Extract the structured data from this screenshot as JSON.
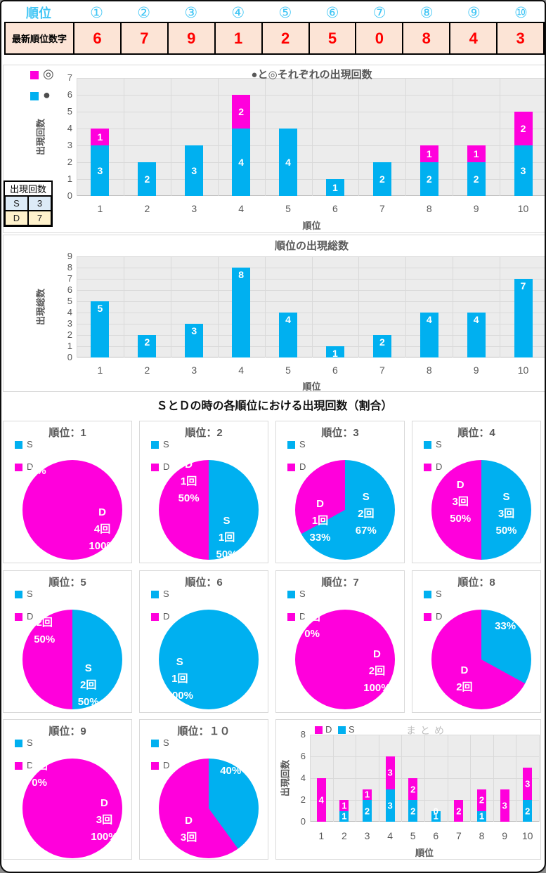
{
  "colors": {
    "cyan": "#00b0f0",
    "magenta": "#ff00dc",
    "plot_bg": "#ececec",
    "grid": "#d9d9d9",
    "axis_text": "#595959",
    "red": "#ff0000",
    "peach": "#fce4d6",
    "light_blue": "#ddebf7",
    "cream": "#fff2cc",
    "muted_title": "#bfbfbf"
  },
  "header_table": {
    "rank_label": "順位",
    "value_label": "最新順位数字",
    "circled": [
      "①",
      "②",
      "③",
      "④",
      "⑤",
      "⑥",
      "⑦",
      "⑧",
      "⑨",
      "⑩"
    ],
    "values": [
      "6",
      "7",
      "9",
      "1",
      "2",
      "5",
      "0",
      "8",
      "4",
      "3"
    ]
  },
  "counts_table": {
    "title": "出現回数",
    "rows": [
      {
        "key": "S",
        "value": "3"
      },
      {
        "key": "D",
        "value": "7"
      }
    ]
  },
  "section_title": "ＳとＤの時の各順位における出現回数（割合）",
  "chart_data": [
    {
      "type": "bar",
      "stacked": true,
      "title": "●と◎それぞれの出現回数",
      "ylabel": "出現回数",
      "xlabel": "順位",
      "categories": [
        "1",
        "2",
        "3",
        "4",
        "5",
        "6",
        "7",
        "8",
        "9",
        "10"
      ],
      "series": [
        {
          "name": "●",
          "color_key": "cyan",
          "values": [
            3,
            2,
            3,
            4,
            4,
            1,
            2,
            2,
            2,
            3
          ]
        },
        {
          "name": "◎",
          "color_key": "magenta",
          "values": [
            1,
            0,
            0,
            2,
            0,
            0,
            0,
            1,
            1,
            2
          ]
        }
      ],
      "ylim": [
        0,
        7
      ],
      "ytick_step": 1,
      "legend_position": "top-left",
      "legend": [
        {
          "symbol": "◎",
          "color_key": "magenta"
        },
        {
          "symbol": "●",
          "color_key": "cyan"
        }
      ]
    },
    {
      "type": "bar",
      "stacked": false,
      "title": "順位の出現総数",
      "ylabel": "出現総数",
      "xlabel": "順位",
      "categories": [
        "1",
        "2",
        "3",
        "4",
        "5",
        "6",
        "7",
        "8",
        "9",
        "10"
      ],
      "values": [
        5,
        2,
        3,
        8,
        4,
        1,
        2,
        4,
        4,
        7
      ],
      "ylim": [
        0,
        9
      ],
      "ytick_step": 1
    },
    {
      "type": "pie-grid",
      "section_title": "ＳとＤの時の各順位における出現回数（割合）",
      "legend": [
        "S",
        "D"
      ],
      "pies": [
        {
          "title": "順位：1",
          "s_count": 0,
          "s_pct": 0,
          "d_count": 4,
          "d_pct": 100,
          "labels": [
            {
              "lines": [
                "0%"
              ],
              "x": 16,
              "y": 11
            },
            {
              "lines": [
                "D",
                "4回",
                "100%"
              ],
              "x": 80,
              "y": 70
            }
          ]
        },
        {
          "title": "順位：2",
          "s_count": 1,
          "s_pct": 50,
          "d_count": 1,
          "d_pct": 50,
          "labels": [
            {
              "lines": [
                "D",
                "1回",
                "50%"
              ],
              "x": 30,
              "y": 22
            },
            {
              "lines": [
                "S",
                "1回",
                "50%"
              ],
              "x": 68,
              "y": 78
            }
          ]
        },
        {
          "title": "順位：3",
          "s_count": 2,
          "s_pct": 67,
          "d_count": 1,
          "d_pct": 33,
          "labels": [
            {
              "lines": [
                "S",
                "2回",
                "67%"
              ],
              "x": 71,
              "y": 54
            },
            {
              "lines": [
                "D",
                "1回",
                "33%"
              ],
              "x": 25,
              "y": 61
            }
          ]
        },
        {
          "title": "順位：4",
          "s_count": 3,
          "s_pct": 50,
          "d_count": 3,
          "d_pct": 50,
          "labels": [
            {
              "lines": [
                "D",
                "3回",
                "50%"
              ],
              "x": 29,
              "y": 42
            },
            {
              "lines": [
                "S",
                "3回",
                "50%"
              ],
              "x": 75,
              "y": 54
            }
          ]
        },
        {
          "title": "順位：5",
          "s_count": 2,
          "s_pct": 50,
          "d_count": 2,
          "d_pct": 50,
          "labels": [
            {
              "lines": [
                "2回",
                "50%"
              ],
              "x": 22,
              "y": 22
            },
            {
              "lines": [
                "S",
                "2回",
                "50%"
              ],
              "x": 66,
              "y": 76
            }
          ]
        },
        {
          "title": "順位：6",
          "s_count": 1,
          "s_pct": 100,
          "d_count": 0,
          "d_pct": 0,
          "labels": [
            {
              "lines": [
                "S",
                "1回",
                "100%"
              ],
              "x": 21,
              "y": 70
            }
          ]
        },
        {
          "title": "順位：7",
          "s_count": 0,
          "s_pct": 0,
          "d_count": 2,
          "d_pct": 100,
          "labels": [
            {
              "lines": [
                "0回",
                "0%"
              ],
              "x": 17,
              "y": 16
            },
            {
              "lines": [
                "D",
                "2回",
                "100%"
              ],
              "x": 82,
              "y": 62
            }
          ]
        },
        {
          "title": "順位：8",
          "s_count": 1,
          "s_pct": 33,
          "d_count": 2,
          "d_pct": 67,
          "labels": [
            {
              "lines": [
                "33%"
              ],
              "x": 74,
              "y": 17
            },
            {
              "lines": [
                "D",
                "2回"
              ],
              "x": 33,
              "y": 70
            }
          ]
        },
        {
          "title": "順位：9",
          "s_count": 0,
          "s_pct": 0,
          "d_count": 3,
          "d_pct": 100,
          "labels": [
            {
              "lines": [
                "0回",
                "0%"
              ],
              "x": 17,
              "y": 16
            },
            {
              "lines": [
                "D",
                "3回",
                "100%"
              ],
              "x": 82,
              "y": 62
            }
          ]
        },
        {
          "title": "順位：１０",
          "s_count": 2,
          "s_pct": 40,
          "d_count": 3,
          "d_pct": 60,
          "labels": [
            {
              "lines": [
                "40%"
              ],
              "x": 72,
              "y": 13
            },
            {
              "lines": [
                "D",
                "3回"
              ],
              "x": 30,
              "y": 71
            }
          ]
        }
      ]
    },
    {
      "type": "bar",
      "stacked": true,
      "title": "まとめ",
      "ylabel": "出現回数",
      "xlabel": "順位",
      "categories": [
        "1",
        "2",
        "3",
        "4",
        "5",
        "6",
        "7",
        "8",
        "9",
        "10"
      ],
      "series": [
        {
          "name": "S",
          "color_key": "cyan",
          "values": [
            0,
            1,
            2,
            3,
            2,
            1,
            0,
            1,
            0,
            2
          ]
        },
        {
          "name": "D",
          "color_key": "magenta",
          "values": [
            4,
            1,
            1,
            3,
            2,
            0,
            2,
            2,
            3,
            3
          ]
        }
      ],
      "ylim": [
        0,
        8
      ],
      "ytick_step": 2,
      "show_zero_labels": true,
      "legend": [
        {
          "symbol": "D",
          "color_key": "magenta"
        },
        {
          "symbol": "S",
          "color_key": "cyan"
        }
      ]
    }
  ]
}
